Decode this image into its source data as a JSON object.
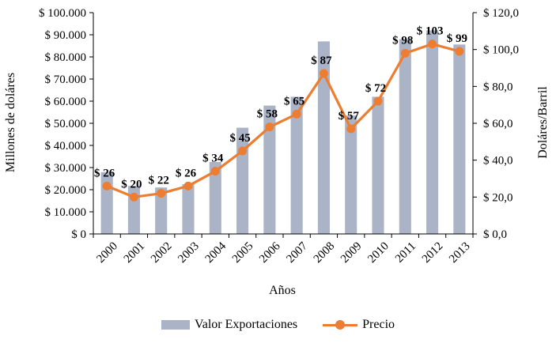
{
  "chart_data": {
    "type": "bar",
    "x_title": "Años",
    "y_title_left": "Millones de doláres",
    "y_title_right": "Doláres/Barril",
    "categories": [
      "2000",
      "2001",
      "2002",
      "2003",
      "2004",
      "2005",
      "2006",
      "2007",
      "2008",
      "2009",
      "2010",
      "2011",
      "2012",
      "2013"
    ],
    "ylim_left": [
      0,
      100000
    ],
    "ylim_right": [
      0,
      120
    ],
    "left_ticks": [
      "$ 0",
      "$ 10.000",
      "$ 20.000",
      "$ 30.000",
      "$ 40.000",
      "$ 50.000",
      "$ 60.000",
      "$ 70.000",
      "$ 80.000",
      "$ 90.000",
      "$ 100.000"
    ],
    "right_ticks": [
      "$ 0,0",
      "$ 20,0",
      "$ 40,0",
      "$ 60,0",
      "$ 80,0",
      "$ 100,0",
      "$ 120,0"
    ],
    "series": [
      {
        "name": "Valor Exportaciones",
        "type": "bar",
        "axis": "left",
        "color": "#aab4c6",
        "values": [
          27900,
          21700,
          21000,
          22500,
          32500,
          48000,
          58000,
          62000,
          87000,
          53500,
          62000,
          88000,
          92000,
          85600
        ]
      },
      {
        "name": "Precio",
        "type": "line",
        "axis": "right",
        "color": "#ed7d31",
        "values": [
          26,
          20,
          22,
          26,
          34,
          45,
          58,
          65,
          87,
          57,
          72,
          98,
          103,
          99
        ],
        "data_labels": [
          "$ 26",
          "$ 20",
          "$ 22",
          "$ 26",
          "$ 34",
          "$ 45",
          "$ 58",
          "$ 65",
          "$ 87",
          "$ 57",
          "$ 72",
          "$ 98",
          "$ 103",
          "$ 99"
        ]
      }
    ],
    "legend_position": "bottom",
    "grid": false
  }
}
